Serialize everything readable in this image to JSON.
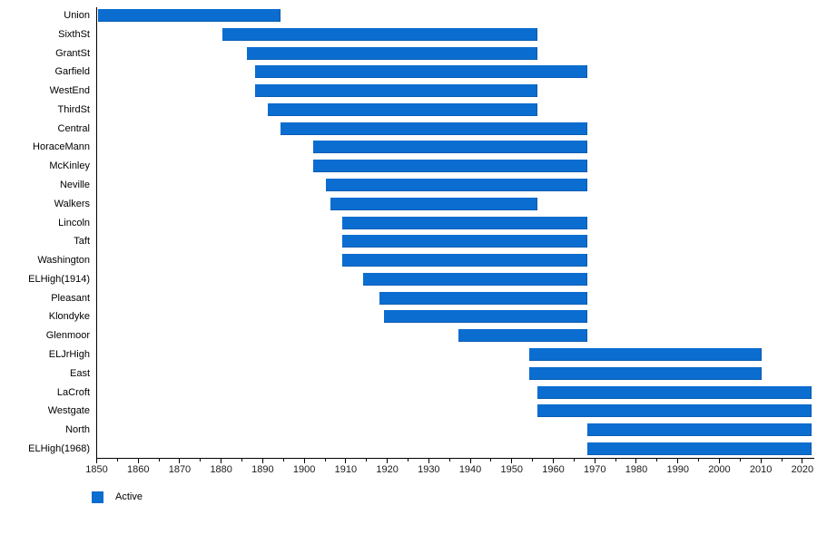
{
  "legend": {
    "label": "Active"
  },
  "chart_data": {
    "type": "bar",
    "variant": "horizontal-timeline-gantt",
    "title": "",
    "xlabel": "",
    "ylabel": "",
    "grid": false,
    "legend_position": "bottom-left",
    "bar_color": "#0b6dd0",
    "axis_color": "#000000",
    "x_axis": {
      "unit": "year",
      "min": 1850,
      "max": 2023,
      "major_ticks": [
        1850,
        1860,
        1870,
        1880,
        1890,
        1900,
        1910,
        1920,
        1930,
        1940,
        1950,
        1960,
        1970,
        1980,
        1990,
        2000,
        2010,
        2020
      ],
      "minor_tick_step": 5
    },
    "series_name": "Active",
    "rows": [
      {
        "name": "Union",
        "start": 1850,
        "end": 1894
      },
      {
        "name": "SixthSt",
        "start": 1880,
        "end": 1956
      },
      {
        "name": "GrantSt",
        "start": 1886,
        "end": 1956
      },
      {
        "name": "Garfield",
        "start": 1888,
        "end": 1968
      },
      {
        "name": "WestEnd",
        "start": 1888,
        "end": 1956
      },
      {
        "name": "ThirdSt",
        "start": 1891,
        "end": 1956
      },
      {
        "name": "Central",
        "start": 1894,
        "end": 1968
      },
      {
        "name": "HoraceMann",
        "start": 1902,
        "end": 1968
      },
      {
        "name": "McKinley",
        "start": 1902,
        "end": 1968
      },
      {
        "name": "Neville",
        "start": 1905,
        "end": 1968
      },
      {
        "name": "Walkers",
        "start": 1906,
        "end": 1956
      },
      {
        "name": "Lincoln",
        "start": 1909,
        "end": 1968
      },
      {
        "name": "Taft",
        "start": 1909,
        "end": 1968
      },
      {
        "name": "Washington",
        "start": 1909,
        "end": 1968
      },
      {
        "name": "ELHigh(1914)",
        "start": 1914,
        "end": 1968
      },
      {
        "name": "Pleasant",
        "start": 1918,
        "end": 1968
      },
      {
        "name": "Klondyke",
        "start": 1919,
        "end": 1968
      },
      {
        "name": "Glenmoor",
        "start": 1937,
        "end": 1968
      },
      {
        "name": "ELJrHigh",
        "start": 1954,
        "end": 2010
      },
      {
        "name": "East",
        "start": 1954,
        "end": 2010
      },
      {
        "name": "LaCroft",
        "start": 1956,
        "end": 2022
      },
      {
        "name": "Westgate",
        "start": 1956,
        "end": 2022
      },
      {
        "name": "North",
        "start": 1968,
        "end": 2022
      },
      {
        "name": "ELHigh(1968)",
        "start": 1968,
        "end": 2022
      }
    ]
  }
}
